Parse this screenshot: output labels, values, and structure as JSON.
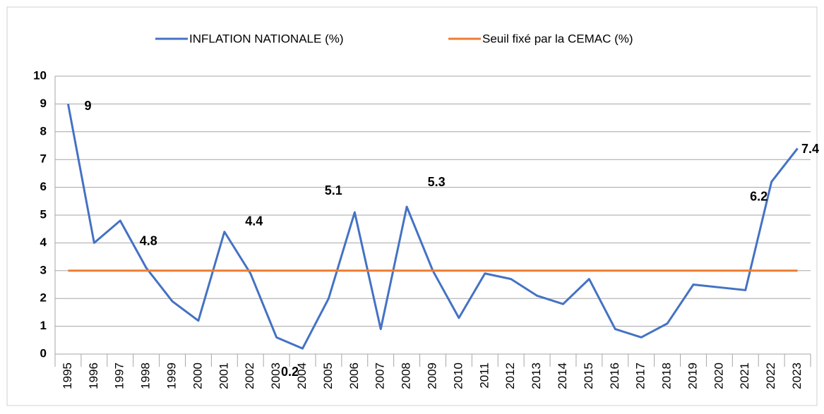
{
  "chart_data": {
    "type": "line",
    "categories": [
      "1995",
      "1996",
      "1997",
      "1998",
      "1999",
      "2000",
      "2001",
      "2002",
      "2003",
      "2004",
      "2005",
      "2006",
      "2007",
      "2008",
      "2009",
      "2010",
      "2011",
      "2012",
      "2013",
      "2014",
      "2015",
      "2016",
      "2017",
      "2018",
      "2019",
      "2020",
      "2021",
      "2022",
      "2023"
    ],
    "series": [
      {
        "name": "INFLATION NATIONALE  (%)",
        "color": "#4472c4",
        "values": [
          9,
          4.0,
          4.8,
          3.1,
          1.9,
          1.2,
          4.4,
          2.9,
          0.6,
          0.2,
          2.0,
          5.1,
          0.9,
          5.3,
          3.0,
          1.3,
          2.9,
          2.7,
          2.1,
          1.8,
          2.7,
          0.9,
          0.6,
          1.1,
          2.5,
          2.4,
          2.3,
          6.2,
          7.4
        ],
        "value_labels": [
          "9",
          null,
          "4.8",
          null,
          null,
          null,
          "4.4",
          null,
          null,
          "0.2",
          null,
          "5.1",
          null,
          "5.3",
          null,
          null,
          null,
          null,
          null,
          null,
          null,
          null,
          null,
          null,
          null,
          null,
          null,
          "6.2",
          "7.4"
        ]
      },
      {
        "name": "Seuil fixé par la CEMAC (%)",
        "color": "#ed7d31",
        "values": [
          3,
          3,
          3,
          3,
          3,
          3,
          3,
          3,
          3,
          3,
          3,
          3,
          3,
          3,
          3,
          3,
          3,
          3,
          3,
          3,
          3,
          3,
          3,
          3,
          3,
          3,
          3,
          3,
          3
        ]
      }
    ],
    "ylim": [
      0,
      10
    ],
    "yticks": [
      0,
      1,
      2,
      3,
      4,
      5,
      6,
      7,
      8,
      9,
      10
    ],
    "grid": true,
    "legend": "top"
  }
}
